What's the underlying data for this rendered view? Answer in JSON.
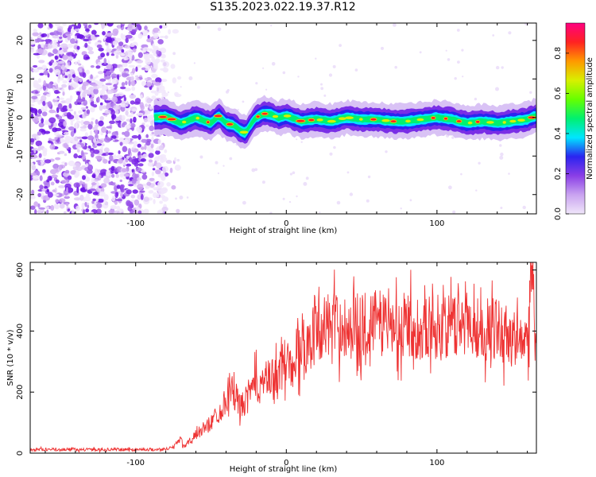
{
  "title": "S135.2023.022.19.37.R12",
  "colors": {
    "snr_line": "#ee3333",
    "axes": "#000000"
  },
  "chart_data": [
    {
      "type": "heatmap",
      "xlabel": "Height of straight line (km)",
      "ylabel": "Frequency (Hz)",
      "xlim": [
        -170,
        166
      ],
      "ylim": [
        -25,
        24.5
      ],
      "xticks": [
        -100,
        0,
        100
      ],
      "xtick_labels": [
        "-100",
        "0",
        "100"
      ],
      "yticks": [
        -20,
        -10,
        0,
        10,
        20
      ],
      "ytick_labels": [
        "-20",
        "-10",
        "0",
        "10",
        "20"
      ],
      "noise_region_x": [
        -170,
        -80
      ],
      "signal_ridge": {
        "x": [
          -88,
          -80,
          -70,
          -60,
          -50,
          -45,
          -40,
          -35,
          -30,
          -27,
          -24,
          -20,
          -15,
          -10,
          -5,
          0,
          10,
          20,
          30,
          40,
          50,
          60,
          70,
          80,
          90,
          100,
          110,
          120,
          130,
          140,
          150,
          160,
          166
        ],
        "freq": [
          0,
          0.2,
          -1.5,
          0,
          -1.5,
          0.5,
          -1.5,
          -2,
          -3.5,
          -4,
          -2,
          0,
          1,
          0.8,
          -0.2,
          0.5,
          -1,
          -0.5,
          -1,
          0,
          -0.5,
          -0.5,
          -1,
          -1,
          -0.5,
          0,
          -0.5,
          -1.5,
          -1,
          -1.5,
          -1,
          -0.5,
          0.5
        ]
      },
      "colorbar": {
        "label": "Normalized spectral amplitude",
        "range": [
          0,
          0.95
        ],
        "ticks": [
          0.0,
          0.2,
          0.4,
          0.6,
          0.8
        ],
        "tick_labels": [
          "0.0",
          "0.2",
          "0.4",
          "0.6",
          "0.8"
        ],
        "colormap": [
          "#f0e6fa",
          "#c9a3f0",
          "#8a3ee6",
          "#2a24f0",
          "#00e6ff",
          "#00f070",
          "#66ff00",
          "#d8f000",
          "#ff9900",
          "#ff2222",
          "#ff0080"
        ]
      },
      "grid": false
    },
    {
      "type": "line",
      "xlabel": "Height of straight line (km)",
      "ylabel": "SNR (10 * v/v)",
      "xlim": [
        -170,
        166
      ],
      "ylim": [
        0,
        625
      ],
      "xticks": [
        -100,
        0,
        100
      ],
      "xtick_labels": [
        "-100",
        "0",
        "100"
      ],
      "yticks": [
        0,
        200,
        400,
        600
      ],
      "ytick_labels": [
        "0",
        "200",
        "400",
        "600"
      ],
      "grid": false,
      "series": [
        {
          "x": [
            -170,
            -140,
            -110,
            -90,
            -80,
            -75,
            -72,
            -70,
            -68,
            -60,
            -50,
            -40,
            -38,
            -30,
            -20,
            -10,
            0,
            5,
            10,
            15,
            20,
            30,
            40,
            50,
            60,
            70,
            80,
            90,
            100,
            110,
            120,
            130,
            140,
            150,
            160,
            163,
            166
          ],
          "values": [
            12,
            12,
            12,
            12,
            13,
            20,
            40,
            50,
            20,
            60,
            100,
            170,
            220,
            150,
            230,
            240,
            300,
            320,
            340,
            370,
            410,
            420,
            415,
            420,
            430,
            420,
            420,
            410,
            420,
            410,
            440,
            400,
            410,
            380,
            350,
            600,
            350
          ]
        }
      ]
    }
  ]
}
